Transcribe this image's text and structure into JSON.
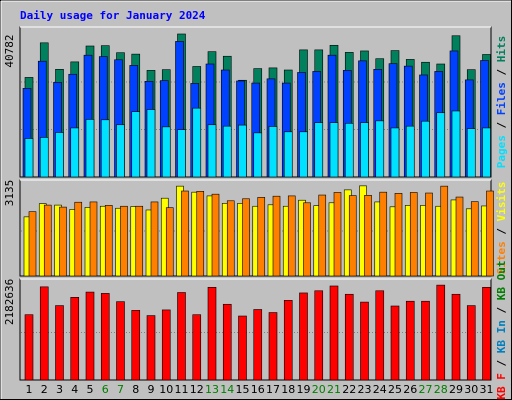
{
  "title": "Daily usage for January 2024",
  "colors": {
    "background": "#c0c0c0",
    "title": "#0000ff",
    "hits": "#00805c",
    "files": "#0040ff",
    "pages": "#00e0ff",
    "visits": "#ffff00",
    "sites": "#ff8000",
    "kbin": "#0080c0",
    "kbout": "#008000",
    "kbf": "#ff0000",
    "weekend_label": "#008000",
    "weekday_label": "#000000"
  },
  "chart_data": [
    {
      "type": "bar",
      "panel": "hits-files-pages",
      "title": "Daily usage for January 2024",
      "y_max_label": "40782",
      "ylim": [
        0,
        40782
      ],
      "categories": [
        "1",
        "2",
        "3",
        "4",
        "5",
        "6",
        "7",
        "8",
        "9",
        "10",
        "11",
        "12",
        "13",
        "14",
        "15",
        "16",
        "17",
        "18",
        "19",
        "20",
        "21",
        "22",
        "23",
        "24",
        "25",
        "26",
        "27",
        "28",
        "29",
        "30",
        "31"
      ],
      "series": [
        {
          "name": "Hits",
          "color": "#00805c",
          "values": [
            28200,
            38000,
            30500,
            32600,
            37100,
            37200,
            35200,
            34800,
            30200,
            30400,
            40500,
            31300,
            35500,
            34200,
            27400,
            30700,
            30900,
            30300,
            36000,
            36000,
            37300,
            35300,
            35700,
            33500,
            35800,
            33300,
            32500,
            32000,
            40000,
            30400,
            34700
          ]
        },
        {
          "name": "Files",
          "color": "#0040ff",
          "values": [
            25100,
            32800,
            26800,
            29100,
            34500,
            34100,
            33200,
            31600,
            27100,
            27300,
            38400,
            26500,
            32000,
            30300,
            27200,
            26600,
            27800,
            26600,
            29600,
            29900,
            34500,
            30200,
            32900,
            30500,
            32100,
            31400,
            28900,
            29900,
            35700,
            27500,
            33000
          ]
        },
        {
          "name": "Pages",
          "color": "#00e0ff",
          "values": [
            10900,
            11200,
            12600,
            13900,
            16300,
            16200,
            14800,
            18500,
            19100,
            14200,
            13400,
            19500,
            14800,
            14400,
            14700,
            12500,
            14300,
            12800,
            12800,
            15400,
            15400,
            15200,
            15400,
            15900,
            13900,
            14400,
            15800,
            18200,
            18700,
            13700,
            13900
          ]
        }
      ]
    },
    {
      "type": "bar",
      "panel": "visits-sites",
      "y_max_label": "3135",
      "ylim": [
        0,
        3135
      ],
      "categories": [
        "1",
        "2",
        "3",
        "4",
        "5",
        "6",
        "7",
        "8",
        "9",
        "10",
        "11",
        "12",
        "13",
        "14",
        "15",
        "16",
        "17",
        "18",
        "19",
        "20",
        "21",
        "22",
        "23",
        "24",
        "25",
        "26",
        "27",
        "28",
        "29",
        "30",
        "31"
      ],
      "series": [
        {
          "name": "Visits",
          "color": "#ffff00",
          "values": [
            2060,
            2520,
            2470,
            2320,
            2390,
            2430,
            2360,
            2420,
            2300,
            2710,
            3130,
            2920,
            2790,
            2530,
            2530,
            2430,
            2480,
            2430,
            2640,
            2450,
            2550,
            3000,
            3140,
            2580,
            2410,
            2460,
            2460,
            2430,
            2650,
            2340,
            2440
          ]
        },
        {
          "name": "Sites",
          "color": "#ff8000",
          "values": [
            2240,
            2470,
            2400,
            2570,
            2580,
            2460,
            2430,
            2430,
            2580,
            2380,
            2960,
            2950,
            2850,
            2620,
            2690,
            2740,
            2780,
            2790,
            2550,
            2820,
            2910,
            2800,
            2810,
            2920,
            2880,
            2910,
            2890,
            3130,
            2750,
            2590,
            2960
          ]
        }
      ]
    },
    {
      "type": "bar",
      "panel": "kbytes",
      "y_max_label": "2182636",
      "ylim": [
        0,
        2182636
      ],
      "categories": [
        "1",
        "2",
        "3",
        "4",
        "5",
        "6",
        "7",
        "8",
        "9",
        "10",
        "11",
        "12",
        "13",
        "14",
        "15",
        "16",
        "17",
        "18",
        "19",
        "20",
        "21",
        "22",
        "23",
        "24",
        "25",
        "26",
        "27",
        "28",
        "29",
        "30",
        "31"
      ],
      "series": [
        {
          "name": "KB F",
          "color": "#ff0000",
          "values": [
            1500000,
            2140000,
            1710000,
            1900000,
            2020000,
            1990000,
            1800000,
            1600000,
            1480000,
            1610000,
            2010000,
            1500000,
            2130000,
            1740000,
            1470000,
            1620000,
            1550000,
            1830000,
            2000000,
            2050000,
            2160000,
            1970000,
            1790000,
            2050000,
            1700000,
            1810000,
            1810000,
            2180000,
            1970000,
            1710000,
            2130000
          ]
        }
      ]
    }
  ],
  "legend": {
    "panel1": [
      {
        "text": "Pages",
        "color": "#00e0ff"
      },
      {
        "text": " / ",
        "color": "#000000"
      },
      {
        "text": "Files",
        "color": "#0040ff"
      },
      {
        "text": " / ",
        "color": "#000000"
      },
      {
        "text": "Hits",
        "color": "#00805c"
      }
    ],
    "panel2": [
      {
        "text": "Sites",
        "color": "#ff8000"
      },
      {
        "text": " / ",
        "color": "#000000"
      },
      {
        "text": "Visits",
        "color": "#ffff00"
      }
    ],
    "panel3": [
      {
        "text": "KB F",
        "color": "#ff0000"
      },
      {
        "text": " / ",
        "color": "#000000"
      },
      {
        "text": "KB In",
        "color": "#0080c0"
      },
      {
        "text": " / ",
        "color": "#000000"
      },
      {
        "text": "KB Out",
        "color": "#008000"
      }
    ]
  },
  "weekend_days": [
    "6",
    "7",
    "13",
    "14",
    "20",
    "21",
    "27",
    "28"
  ]
}
